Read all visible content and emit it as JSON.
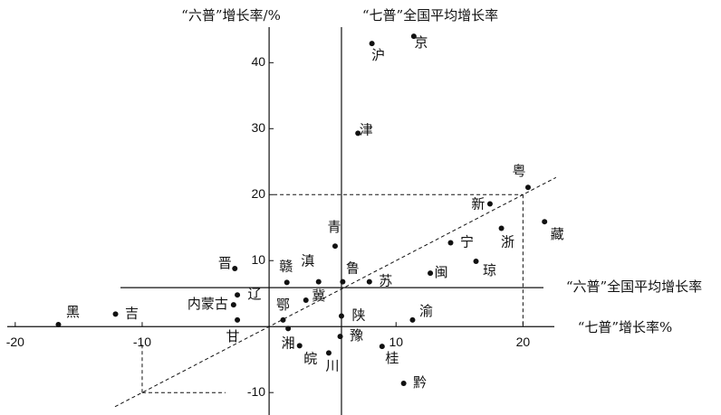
{
  "chart_data": {
    "type": "scatter",
    "y_title": "“六普”增长率/%",
    "vline_label": "“七普”全国平均增长率",
    "hline_label": "“六普”全国平均增长率",
    "x_title": "“七普”增长率%",
    "xlim": [
      -21.2,
      35.6
    ],
    "ylim": [
      -13.4,
      49.5
    ],
    "xticks": [
      -20,
      -10,
      10,
      20
    ],
    "yticks": [
      -10,
      10,
      20,
      30,
      40
    ],
    "vline": 5.7,
    "hline": 5.9,
    "dashed_guides": [
      20,
      -10
    ],
    "color": "#111111",
    "labels": [
      "京",
      "沪",
      "津",
      "粤",
      "新",
      "藏",
      "浙",
      "宁",
      "琼",
      "闽",
      "青",
      "滇",
      "赣",
      "晋",
      "鲁",
      "苏",
      "冀",
      "辽",
      "内蒙古",
      "鄂",
      "甘",
      "陕",
      "渝",
      "湘",
      "豫",
      "皖",
      "川",
      "桂",
      "黔",
      "黑",
      "吉"
    ],
    "x": [
      11.4,
      8.1,
      7.0,
      20.4,
      17.4,
      21.7,
      18.3,
      14.3,
      16.3,
      12.7,
      5.2,
      3.9,
      1.4,
      -2.7,
      5.8,
      7.9,
      2.9,
      -2.5,
      -2.8,
      1.1,
      -2.5,
      5.7,
      11.3,
      1.5,
      5.6,
      2.4,
      4.7,
      8.9,
      10.6,
      -16.6,
      -12.1
    ],
    "y": [
      44.0,
      42.9,
      29.3,
      21.1,
      18.6,
      15.9,
      14.9,
      12.7,
      9.9,
      8.1,
      12.2,
      6.8,
      6.7,
      8.8,
      6.8,
      6.8,
      4.0,
      4.8,
      3.3,
      1.0,
      1.0,
      1.6,
      1.0,
      -0.3,
      -1.5,
      -2.9,
      -4.0,
      -3.0,
      -8.6,
      0.3,
      1.9
    ]
  }
}
